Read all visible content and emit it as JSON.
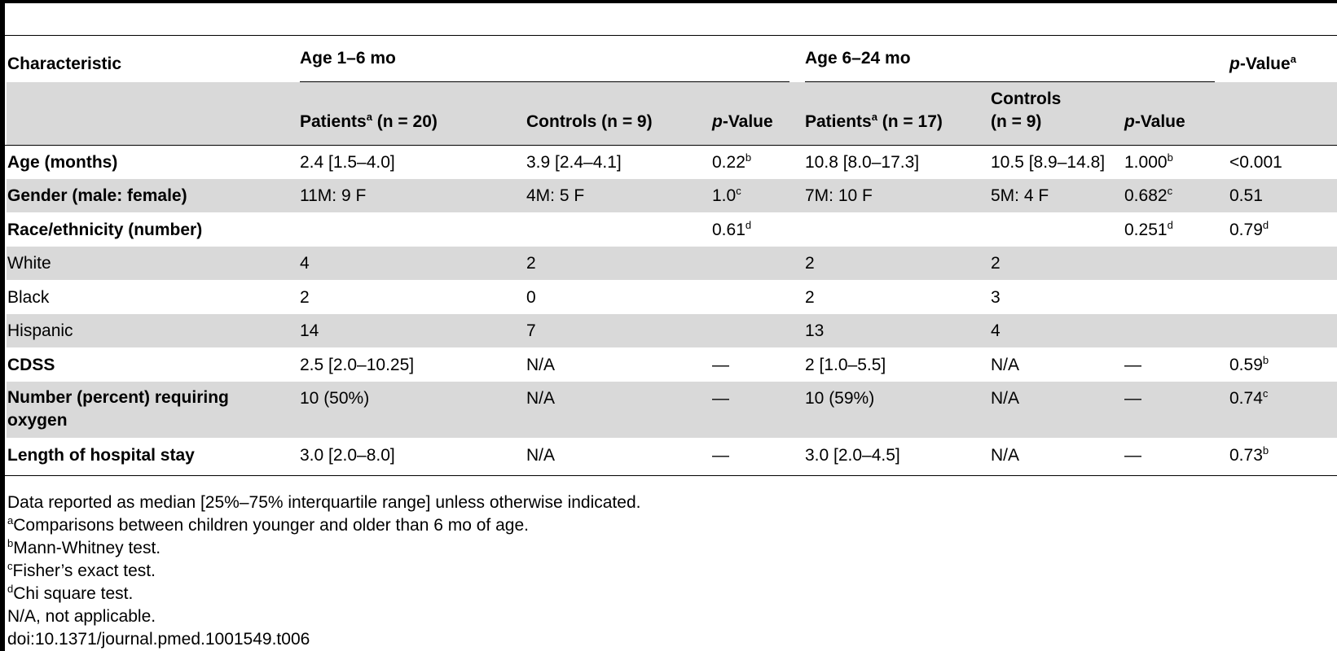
{
  "header": {
    "characteristic": "Characteristic",
    "group1": "Age 1–6 mo",
    "group2": "Age 6–24 mo",
    "pvalue_p": "p",
    "pvalue_rest": "-Value",
    "pvalue_sup": "a",
    "patients1": "Patients",
    "patients1_sup": "a",
    "patients1_n": "(n = 20)",
    "controls1": "Controls (n = 9)",
    "patients2": "Patients",
    "patients2_sup": "a",
    "patients2_n": "(n = 17)",
    "controls2_line1": "Controls",
    "controls2_line2": "(n = 9)"
  },
  "rows": [
    {
      "label": "Age (months)",
      "c1": "2.4 [1.5–4.0]",
      "c2": "3.9 [2.4–4.1]",
      "p1": "0.22",
      "p1s": "b",
      "c3": "10.8 [8.0–17.3]",
      "c4": "10.5 [8.9–14.8]",
      "p2": "1.000",
      "p2s": "b",
      "p3": "<0.001",
      "p3s": ""
    },
    {
      "label": "Gender (male: female)",
      "c1": "11M: 9 F",
      "c2": "4M: 5 F",
      "p1": "1.0",
      "p1s": "c",
      "c3": "7M: 10 F",
      "c4": "5M: 4 F",
      "p2": "0.682",
      "p2s": "c",
      "p3": "0.51",
      "p3s": ""
    },
    {
      "label": "Race/ethnicity (number)",
      "c1": "",
      "c2": "",
      "p1": "0.61",
      "p1s": "d",
      "c3": "",
      "c4": "",
      "p2": "0.251",
      "p2s": "d",
      "p3": "0.79",
      "p3s": "d"
    },
    {
      "label": "White",
      "c1": "4",
      "c2": "2",
      "p1": "",
      "p1s": "",
      "c3": "2",
      "c4": "2",
      "p2": "",
      "p2s": "",
      "p3": "",
      "p3s": ""
    },
    {
      "label": "Black",
      "c1": "2",
      "c2": "0",
      "p1": "",
      "p1s": "",
      "c3": "2",
      "c4": "3",
      "p2": "",
      "p2s": "",
      "p3": "",
      "p3s": ""
    },
    {
      "label": "Hispanic",
      "c1": "14",
      "c2": "7",
      "p1": "",
      "p1s": "",
      "c3": "13",
      "c4": "4",
      "p2": "",
      "p2s": "",
      "p3": "",
      "p3s": ""
    },
    {
      "label": "CDSS",
      "c1": "2.5 [2.0–10.25]",
      "c2": "N/A",
      "p1": "—",
      "p1s": "",
      "c3": "2 [1.0–5.5]",
      "c4": "N/A",
      "p2": "—",
      "p2s": "",
      "p3": "0.59",
      "p3s": "b"
    },
    {
      "label": "Number (percent) requiring oxygen",
      "c1": "10 (50%)",
      "c2": "N/A",
      "p1": "—",
      "p1s": "",
      "c3": "10 (59%)",
      "c4": "N/A",
      "p2": "—",
      "p2s": "",
      "p3": "0.74",
      "p3s": "c"
    },
    {
      "label": "Length of hospital stay",
      "c1": "3.0 [2.0–8.0]",
      "c2": "N/A",
      "p1": "—",
      "p1s": "",
      "c3": "3.0 [2.0–4.5]",
      "c4": "N/A",
      "p2": "—",
      "p2s": "",
      "p3": "0.73",
      "p3s": "b"
    }
  ],
  "footnotes": {
    "f0": "Data reported as median [25%–75% interquartile range] unless otherwise indicated.",
    "fa_sup": "a",
    "fa": "Comparisons between children younger and older than 6 mo of age.",
    "fb_sup": "b",
    "fb": "Mann-Whitney test.",
    "fc_sup": "c",
    "fc": "Fisher’s exact test.",
    "fd_sup": "d",
    "fd": "Chi square test.",
    "fna": "N/A, not applicable.",
    "doi": "doi:10.1371/journal.pmed.1001549.t006"
  }
}
